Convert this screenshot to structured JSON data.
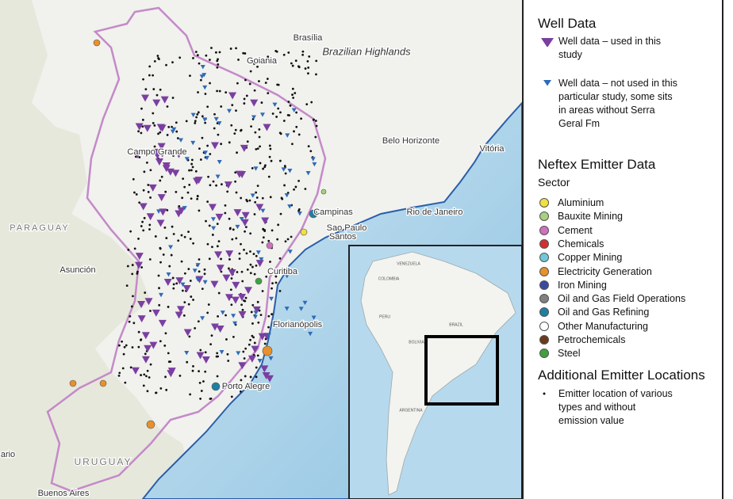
{
  "map": {
    "labels": [
      "Brasília",
      "Goiania",
      "Brazilian Highlands",
      "Belo Horizonte",
      "Vitória",
      "Campo Grande",
      "Campinas",
      "Rio de Janeiro",
      "Sao Paulo",
      "Santos",
      "PARAGUAY",
      "Asunción",
      "Curitiba",
      "Florianópolis",
      "Porto Alegre",
      "URUGUAY",
      "Buenos Aires",
      "ario"
    ],
    "inset_labels": [
      "VENEZUELA",
      "COLOMBIA",
      "PERU",
      "BOLIVIA",
      "BRAZIL",
      "ARGENTINA"
    ]
  },
  "legend": {
    "well_title": "Well Data",
    "well_items": [
      {
        "label": "Well data – used in this study",
        "color": "#7a3fa0"
      },
      {
        "label": "Well data – not used in this particular study, some sits in areas without Serra Geral Fm",
        "color": "#2e6bb8"
      }
    ],
    "emitter_title": "Neftex Emitter Data",
    "sector_title": "Sector",
    "sectors": [
      {
        "label": "Aluminium",
        "color": "#f0e040"
      },
      {
        "label": "Bauxite Mining",
        "color": "#a8d080"
      },
      {
        "label": "Cement",
        "color": "#d070c0"
      },
      {
        "label": "Chemicals",
        "color": "#d03030"
      },
      {
        "label": "Copper Mining",
        "color": "#70c8d8"
      },
      {
        "label": "Electricity Generation",
        "color": "#e8902a"
      },
      {
        "label": "Iron Mining",
        "color": "#3a4aa0"
      },
      {
        "label": "Oil and Gas Field Operations",
        "color": "#808080"
      },
      {
        "label": "Oil and Gas Refining",
        "color": "#1f7fa0"
      },
      {
        "label": "Other Manufacturing",
        "color": "#ffffff"
      },
      {
        "label": "Petrochemicals",
        "color": "#6b3a1a"
      },
      {
        "label": "Steel",
        "color": "#40a040"
      }
    ],
    "additional_title": "Additional Emitter Locations",
    "additional_item": "Emitter location of various types and without emission value"
  }
}
